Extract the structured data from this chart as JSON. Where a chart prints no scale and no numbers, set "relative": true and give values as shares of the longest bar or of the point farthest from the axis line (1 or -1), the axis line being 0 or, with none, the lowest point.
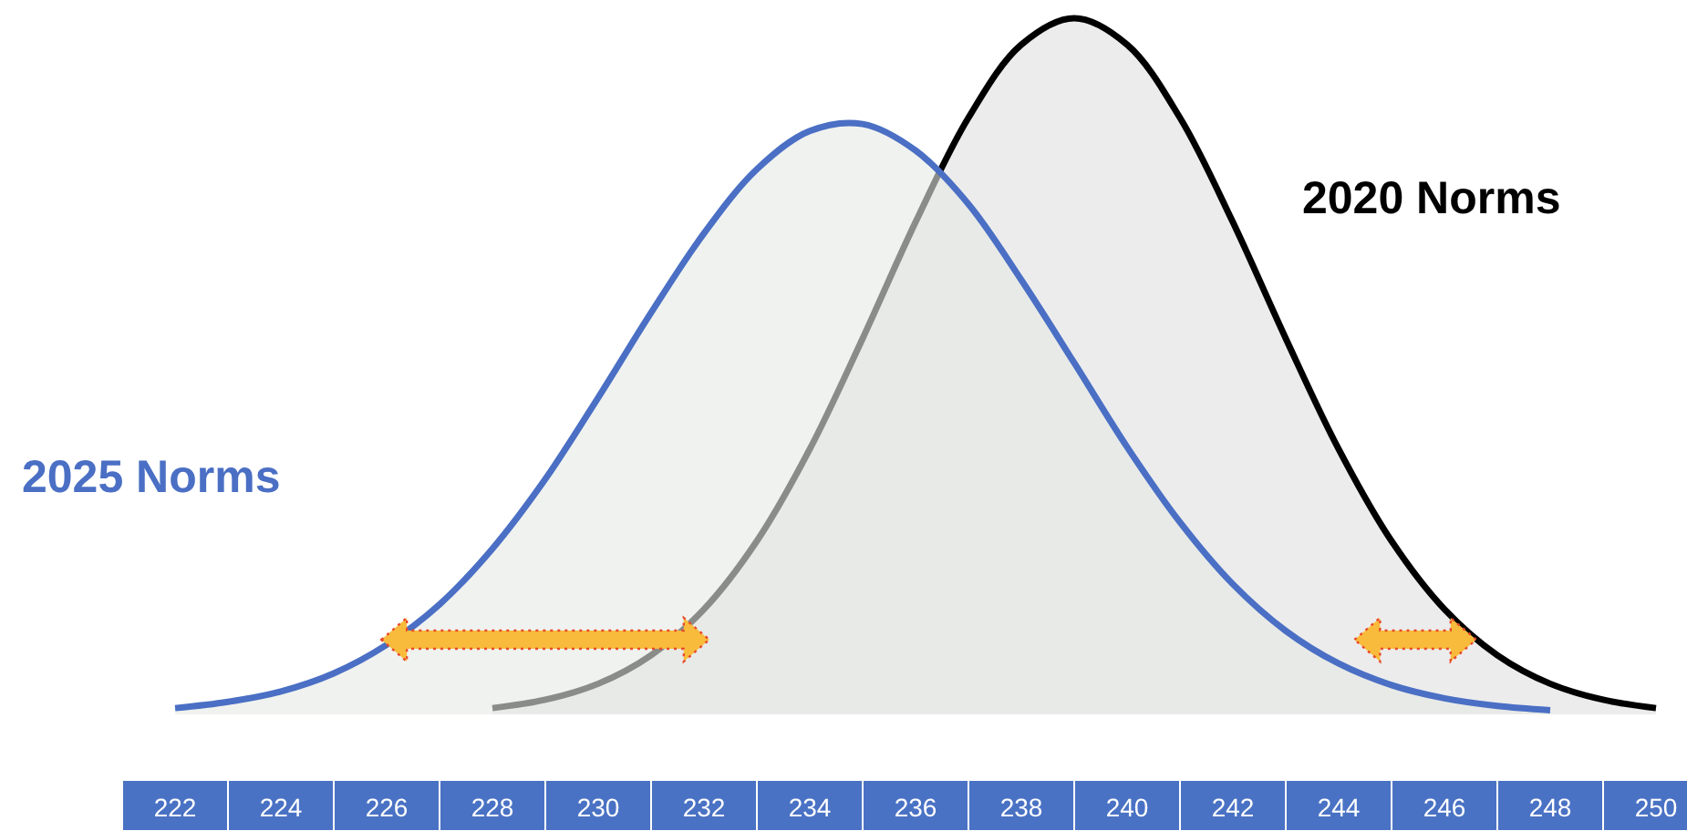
{
  "chart_data": {
    "type": "area",
    "relative": true,
    "xlim": [
      222,
      250
    ],
    "xticks": [
      222,
      224,
      226,
      228,
      230,
      232,
      234,
      236,
      238,
      240,
      242,
      244,
      246,
      248,
      250
    ],
    "series": [
      {
        "name": "2020 Norms",
        "color": "#000000",
        "x": [
          228,
          229,
          230,
          231,
          232,
          233,
          234,
          235,
          236,
          237,
          238,
          239,
          240,
          241,
          242,
          243,
          244,
          245,
          246,
          247,
          248,
          249,
          250
        ],
        "values": [
          0.009,
          0.021,
          0.044,
          0.085,
          0.151,
          0.249,
          0.381,
          0.54,
          0.707,
          0.857,
          0.962,
          1,
          0.962,
          0.857,
          0.707,
          0.54,
          0.381,
          0.249,
          0.151,
          0.085,
          0.044,
          0.021,
          0.009
        ]
      },
      {
        "name": "2025 Norms",
        "color": "#4a6fc4",
        "x": [
          222,
          223,
          224,
          225,
          226,
          227,
          228,
          229,
          230,
          231,
          232,
          233,
          234,
          235,
          236,
          237,
          238,
          239,
          240,
          241,
          242,
          243,
          244,
          245,
          246,
          247,
          248
        ],
        "values": [
          0.009,
          0.018,
          0.033,
          0.059,
          0.1,
          0.158,
          0.238,
          0.338,
          0.455,
          0.577,
          0.691,
          0.783,
          0.838,
          0.848,
          0.81,
          0.733,
          0.624,
          0.505,
          0.384,
          0.276,
          0.187,
          0.12,
          0.073,
          0.042,
          0.023,
          0.012,
          0.006
        ]
      }
    ]
  }
}
